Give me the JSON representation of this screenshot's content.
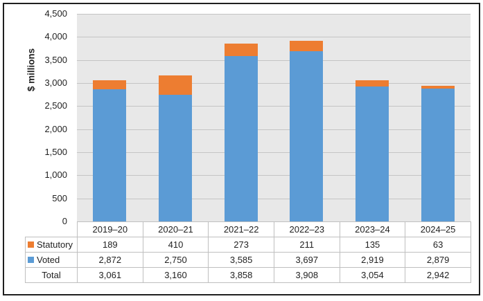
{
  "chart_data": {
    "type": "bar",
    "stacked": true,
    "title": "",
    "ylabel": "$ millions",
    "categories": [
      "2019–20",
      "2020–21",
      "2021–22",
      "2022–23",
      "2023–24",
      "2024–25"
    ],
    "series": [
      {
        "name": "Statutory",
        "color": "#ED7D31",
        "values": [
          189,
          410,
          273,
          211,
          135,
          63
        ]
      },
      {
        "name": "Voted",
        "color": "#5B9BD5",
        "values": [
          2872,
          2750,
          3585,
          3697,
          2919,
          2879
        ]
      }
    ],
    "totals": {
      "label": "Total",
      "values": [
        3061,
        3160,
        3858,
        3908,
        3054,
        2942
      ]
    },
    "ylim": [
      0,
      4500
    ],
    "ytick_step": 500,
    "grid": true,
    "legend_position": "table-row-labels",
    "colors": {
      "plot_bg": "#E8E8E8",
      "gridline": "#C4C4C4",
      "table_border": "#BFBFBF",
      "frame_border": "#1F1F1F",
      "text": "#1F1F1F"
    }
  }
}
